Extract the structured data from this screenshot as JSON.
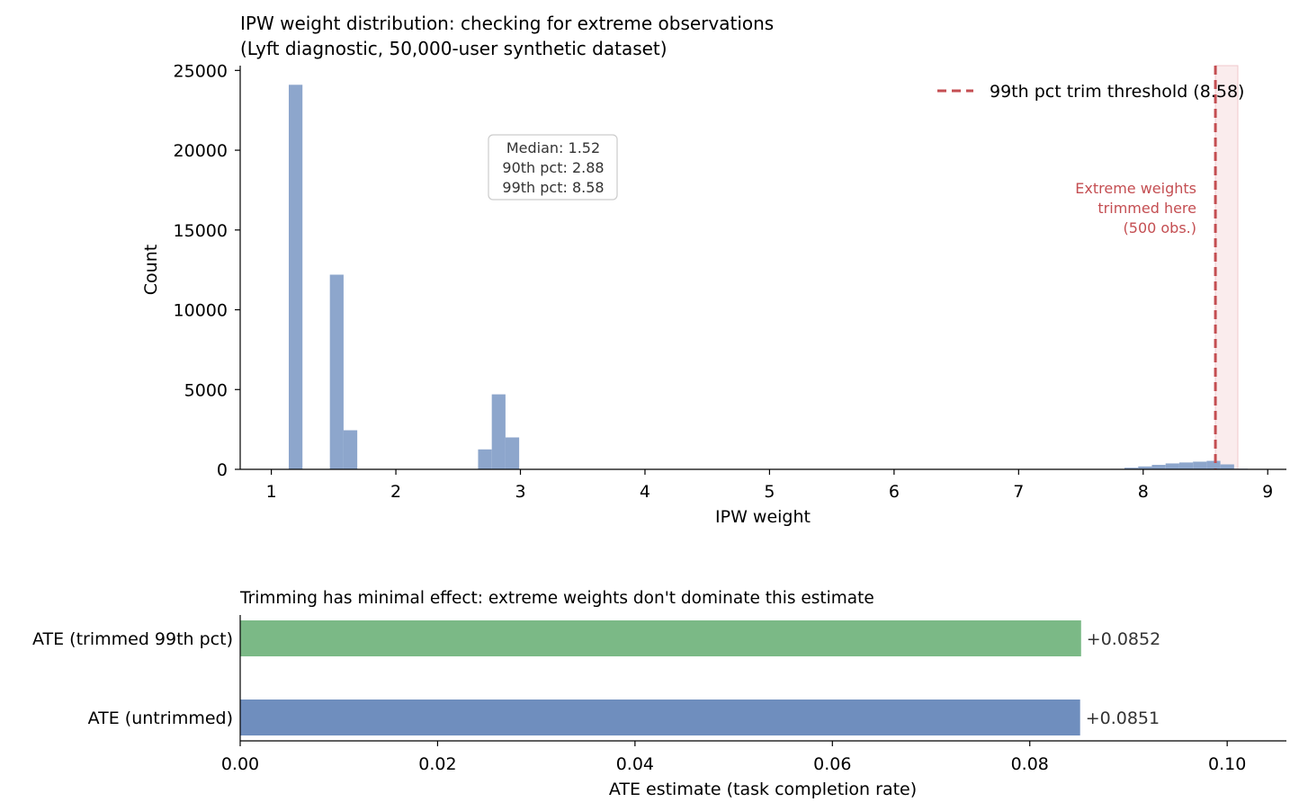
{
  "chart_data": [
    {
      "type": "bar",
      "title": "IPW weight distribution: checking for extreme observations\n(Lyft diagnostic, 50,000-user synthetic dataset)",
      "xlabel": "IPW weight",
      "ylabel": "Count",
      "xlim": [
        0.75,
        9.15
      ],
      "ylim": [
        0,
        25300
      ],
      "xticks": [
        1,
        2,
        3,
        4,
        5,
        6,
        7,
        8,
        9
      ],
      "yticks": [
        0,
        5000,
        10000,
        15000,
        20000,
        25000
      ],
      "bar_color": "#8da6cc",
      "bin_width": 0.11,
      "bins": [
        {
          "x": 1.14,
          "value": 24100
        },
        {
          "x": 1.47,
          "value": 12200
        },
        {
          "x": 1.58,
          "value": 2450
        },
        {
          "x": 2.66,
          "value": 1250
        },
        {
          "x": 2.77,
          "value": 4700
        },
        {
          "x": 2.88,
          "value": 2000
        },
        {
          "x": 7.74,
          "value": 30
        },
        {
          "x": 7.85,
          "value": 100
        },
        {
          "x": 7.96,
          "value": 180
        },
        {
          "x": 8.07,
          "value": 280
        },
        {
          "x": 8.18,
          "value": 370
        },
        {
          "x": 8.29,
          "value": 430
        },
        {
          "x": 8.4,
          "value": 480
        },
        {
          "x": 8.51,
          "value": 530
        },
        {
          "x": 8.62,
          "value": 310
        },
        {
          "x": 8.73,
          "value": 40
        }
      ],
      "threshold": {
        "value": 8.58,
        "label": "99th pct trim threshold (8.58)",
        "color": "#c44e52"
      },
      "shaded_region": [
        8.58,
        8.76
      ],
      "stats_box": [
        "Median: 1.52",
        "90th pct: 2.88",
        "99th pct: 8.58"
      ],
      "annotation": [
        "Extreme weights",
        "trimmed here",
        "(500 obs.)"
      ],
      "legend_position": "top-right"
    },
    {
      "type": "bar",
      "orientation": "horizontal",
      "title": "Trimming has minimal effect: extreme weights don't dominate this estimate",
      "xlabel": "ATE estimate (task completion rate)",
      "xlim": [
        0.0,
        0.106
      ],
      "xticks": [
        "0.00",
        "0.02",
        "0.04",
        "0.06",
        "0.08",
        "0.10"
      ],
      "categories": [
        "ATE (trimmed 99th pct)",
        "ATE (untrimmed)"
      ],
      "values": [
        0.0852,
        0.0851
      ],
      "value_labels": [
        "+0.0852",
        "+0.0851"
      ],
      "colors": [
        "#7bb986",
        "#6f8ebe"
      ]
    }
  ]
}
